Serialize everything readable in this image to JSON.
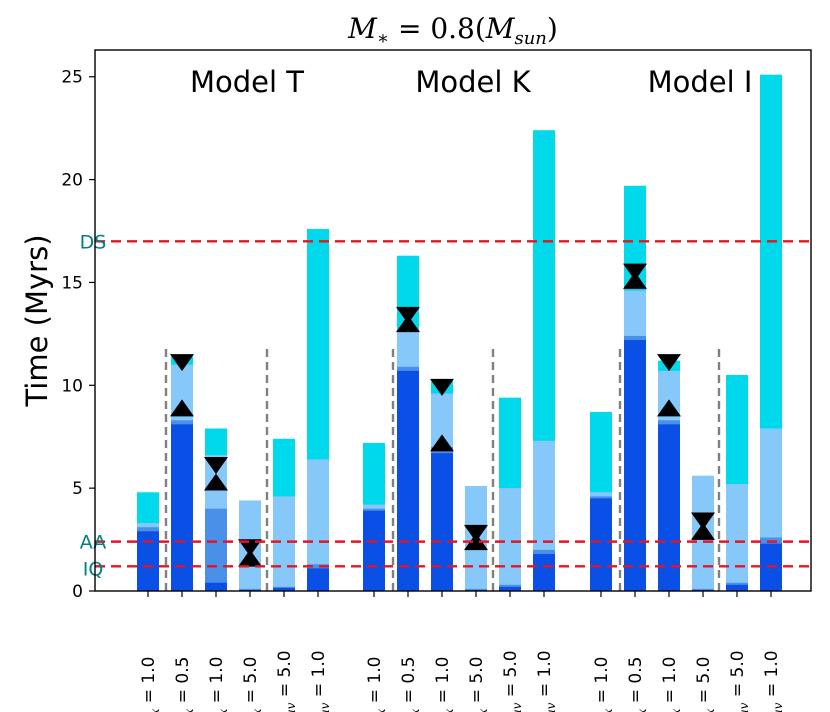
{
  "chart_data": {
    "type": "bar",
    "title_main": "M",
    "title_star": "∗",
    "title_eq": " = 0.8(",
    "title_m": "M",
    "title_sub": "sun",
    "title_close": ")",
    "ylabel": "Time (Myrs)",
    "ylim": [
      0,
      26.3
    ],
    "yticks": [
      "0",
      "5",
      "10",
      "15",
      "20",
      "25"
    ],
    "ytick_values": [
      0,
      5,
      10,
      15,
      20,
      25
    ],
    "colors": {
      "dark_blue": "#0a4fe6",
      "mid_blue": "#4a8fe8",
      "light_blue": "#86c8fa",
      "cyan": "#00d8ec",
      "ref_line": "#e8141e",
      "ref_text": "#008080",
      "divider": "#808080"
    },
    "reference_lines": [
      {
        "name": "DS",
        "value": 17.0
      },
      {
        "name": "AA",
        "value": 2.4
      },
      {
        "name": "IQ",
        "value": 1.2
      }
    ],
    "models": [
      {
        "name": "Model T",
        "bars": [
          {
            "label_sym": "e",
            "label_sub": "x",
            "label_val": " = 1.0",
            "dark": 2.9,
            "mid": 3.1,
            "light": 3.3,
            "total": 4.8,
            "markers": []
          },
          {
            "label_sym": "e",
            "label_sub": "x",
            "label_val": " = 0.5",
            "dark": 8.1,
            "mid": 8.3,
            "light": 8.5,
            "total": 11.4,
            "markers": [
              {
                "type": "down",
                "value": 11.1
              },
              {
                "type": "up",
                "value": 8.9
              }
            ]
          },
          {
            "label_sym": "e",
            "label_sub": "x",
            "label_val": " = 1.0",
            "dark": 0.4,
            "mid": 4.0,
            "light": 4.4,
            "total": 7.9,
            "markers": [
              {
                "type": "down",
                "value": 6.1
              },
              {
                "type": "up",
                "value": 5.3
              }
            ]
          },
          {
            "label_sym": "e",
            "label_sub": "x",
            "label_val": " = 5.0",
            "dark": 0.05,
            "mid": 0.1,
            "light": 0.15,
            "total": 4.4,
            "markers": [
              {
                "type": "down",
                "value": 2.1
              },
              {
                "type": "up",
                "value": 1.6
              }
            ]
          },
          {
            "label_sym": "e",
            "label_sub": "fuv",
            "label_val": " = 5.0",
            "dark": 0.15,
            "mid": 0.2,
            "light": 0.3,
            "total": 7.4,
            "markers": []
          },
          {
            "label_sym": "e",
            "label_sub": "fuv",
            "label_val": " = 1.0",
            "dark": 1.1,
            "mid": 1.3,
            "light": 1.5,
            "total": 17.6,
            "markers": []
          }
        ]
      },
      {
        "name": "Model K",
        "bars": [
          {
            "label_sym": "e",
            "label_sub": "x",
            "label_val": " = 1.0",
            "dark": 3.9,
            "mid": 4.0,
            "light": 4.2,
            "total": 7.2,
            "markers": []
          },
          {
            "label_sym": "e",
            "label_sub": "x",
            "label_val": " = 0.5",
            "dark": 10.7,
            "mid": 10.9,
            "light": 11.2,
            "total": 16.3,
            "markers": [
              {
                "type": "down",
                "value": 13.4
              },
              {
                "type": "up",
                "value": 13.0
              }
            ]
          },
          {
            "label_sym": "e",
            "label_sub": "x",
            "label_val": " = 1.0",
            "dark": 6.7,
            "mid": 7.0,
            "light": 7.3,
            "total": 10.2,
            "markers": [
              {
                "type": "down",
                "value": 9.9
              },
              {
                "type": "up",
                "value": 7.2
              }
            ]
          },
          {
            "label_sym": "e",
            "label_sub": "x",
            "label_val": " = 5.0",
            "dark": 0.05,
            "mid": 0.1,
            "light": 0.15,
            "total": 5.1,
            "markers": [
              {
                "type": "down",
                "value": 2.8
              },
              {
                "type": "up",
                "value": 2.4
              }
            ]
          },
          {
            "label_sym": "e",
            "label_sub": "fuv",
            "label_val": " = 5.0",
            "dark": 0.2,
            "mid": 0.3,
            "light": 0.4,
            "total": 9.4,
            "markers": []
          },
          {
            "label_sym": "e",
            "label_sub": "fuv",
            "label_val": " = 1.0",
            "dark": 1.8,
            "mid": 2.0,
            "light": 2.3,
            "total": 22.4,
            "markers": []
          }
        ]
      },
      {
        "name": "Model I",
        "bars": [
          {
            "label_sym": "e",
            "label_sub": "x",
            "label_val": " = 1.0",
            "dark": 4.5,
            "mid": 4.6,
            "light": 4.8,
            "total": 8.7,
            "markers": []
          },
          {
            "label_sym": "e",
            "label_sub": "x",
            "label_val": " = 0.5",
            "dark": 12.2,
            "mid": 12.4,
            "light": 12.7,
            "total": 19.7,
            "markers": [
              {
                "type": "down",
                "value": 15.5
              },
              {
                "type": "up",
                "value": 15.1
              }
            ]
          },
          {
            "label_sym": "e",
            "label_sub": "x",
            "label_val": " = 1.0",
            "dark": 8.1,
            "mid": 8.3,
            "light": 8.5,
            "total": 11.2,
            "markers": [
              {
                "type": "down",
                "value": 11.1
              },
              {
                "type": "up",
                "value": 8.9
              }
            ]
          },
          {
            "label_sym": "e",
            "label_sub": "x",
            "label_val": " = 5.0",
            "dark": 0.05,
            "mid": 0.1,
            "light": 0.15,
            "total": 5.6,
            "markers": [
              {
                "type": "down",
                "value": 3.4
              },
              {
                "type": "up",
                "value": 2.9
              }
            ]
          },
          {
            "label_sym": "e",
            "label_sub": "fuv",
            "label_val": " = 5.0",
            "dark": 0.3,
            "mid": 0.4,
            "light": 0.6,
            "total": 10.5,
            "markers": []
          },
          {
            "label_sym": "e",
            "label_sub": "fuv",
            "label_val": " = 1.0",
            "dark": 2.3,
            "mid": 2.6,
            "light": 2.9,
            "total": 25.1,
            "markers": [],
            "light_top": 7.9
          }
        ]
      }
    ]
  }
}
